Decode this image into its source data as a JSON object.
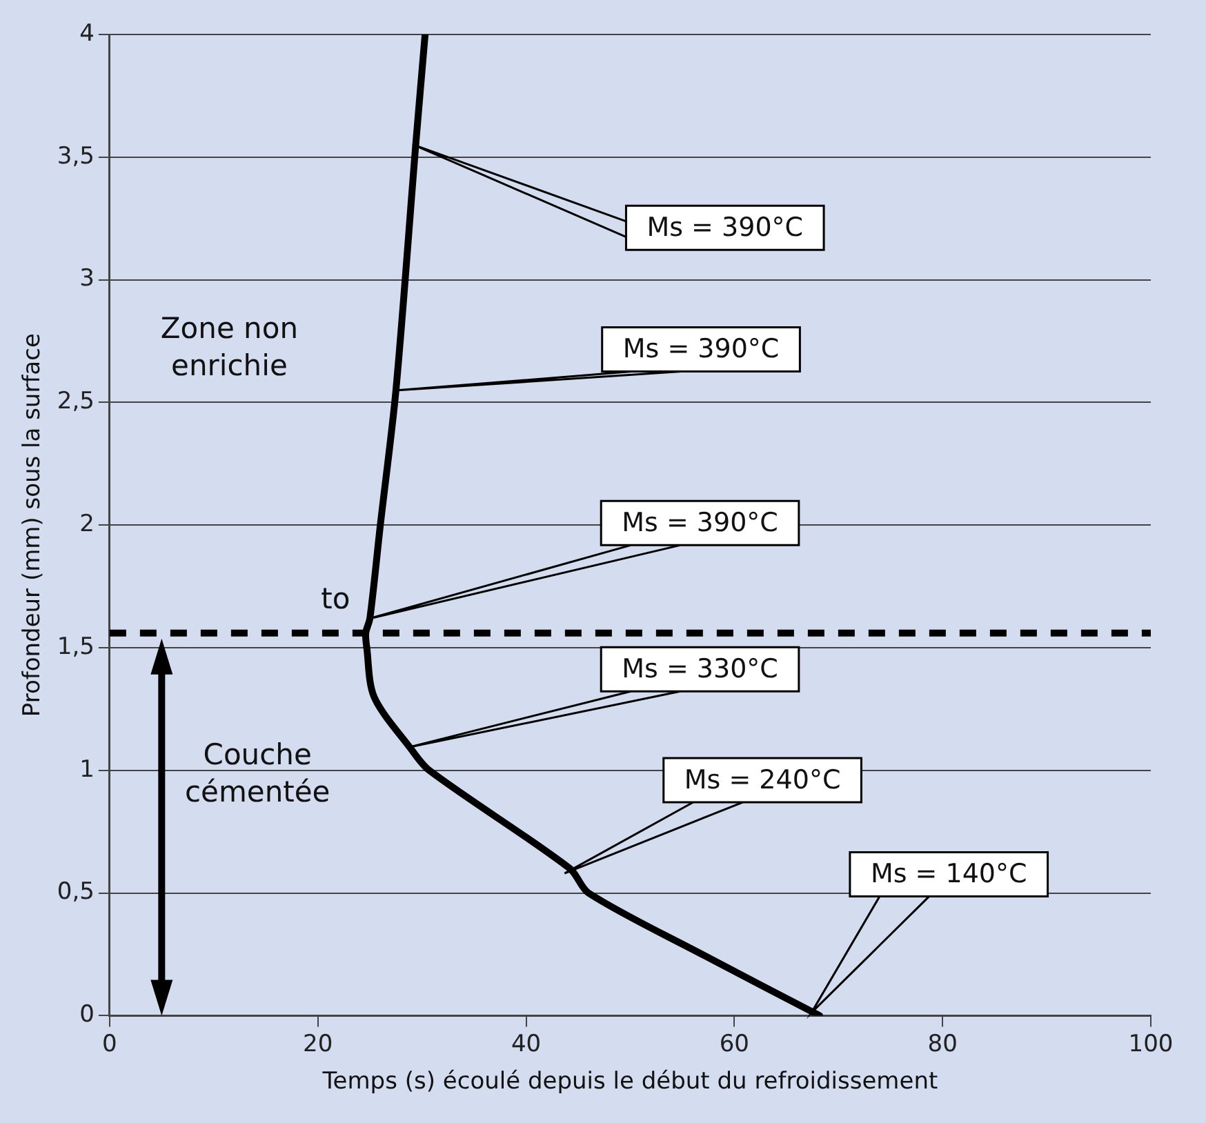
{
  "chart_data": {
    "type": "line",
    "xlabel": "Temps (s) écoulé depuis le début du refroidissement",
    "ylabel": "Profondeur (mm) sous la surface",
    "xlim": [
      0,
      100
    ],
    "xticks": [
      0,
      20,
      40,
      60,
      80,
      100
    ],
    "ylim": [
      0,
      4
    ],
    "yticks": [
      {
        "value": 0,
        "label": "0"
      },
      {
        "value": 0.5,
        "label": "0,5"
      },
      {
        "value": 1,
        "label": "1"
      },
      {
        "value": 1.5,
        "label": "1,5"
      },
      {
        "value": 2,
        "label": "2"
      },
      {
        "value": 2.5,
        "label": "2,5"
      },
      {
        "value": 3,
        "label": "3"
      },
      {
        "value": 3.5,
        "label": "3,5"
      },
      {
        "value": 4,
        "label": "4"
      }
    ],
    "grid": "y",
    "legend": false,
    "marker": "none",
    "line_style": "solid",
    "series": [
      {
        "color": "#000000",
        "x": [
          68.2,
          56.9,
          46.0,
          44.2,
          30.7,
          28.9,
          25.4,
          24.7,
          24.6,
          25.0,
          26.0,
          27.5,
          29.4,
          30.3
        ],
        "values": [
          0,
          0.25,
          0.5,
          0.6,
          1.0,
          1.09,
          1.3,
          1.5,
          1.56,
          1.62,
          2.0,
          2.55,
          3.55,
          4.0
        ]
      }
    ],
    "ref_lines": [
      {
        "axis": "y",
        "value": 1.56,
        "color": "#000000",
        "line_style": "dashed"
      }
    ],
    "annotations": [
      "Ms = 390°C",
      "Ms = 390°C",
      "Ms = 390°C",
      "Ms = 330°C",
      "Ms = 240°C",
      "Ms = 140°C",
      "Zone non enrichie",
      "Couche cémentée",
      "to"
    ]
  }
}
